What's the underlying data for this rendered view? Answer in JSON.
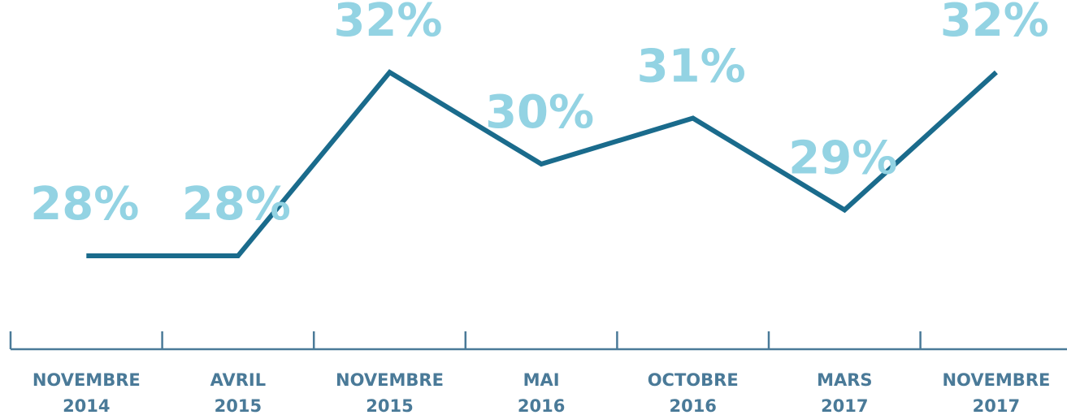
{
  "chart_data": {
    "type": "line",
    "categories": [
      [
        "NOVEMBRE",
        "2014"
      ],
      [
        "AVRIL",
        "2015"
      ],
      [
        "NOVEMBRE",
        "2015"
      ],
      [
        "MAI",
        "2016"
      ],
      [
        "OCTOBRE",
        "2016"
      ],
      [
        "MARS",
        "2017"
      ],
      [
        "NOVEMBRE",
        "2017"
      ]
    ],
    "values": [
      28,
      28,
      32,
      30,
      31,
      29,
      32
    ],
    "value_labels": [
      "28%",
      "28%",
      "32%",
      "30%",
      "31%",
      "29%",
      "32%"
    ],
    "color": "#1a6b8c",
    "label_color": "#93d3e3"
  }
}
